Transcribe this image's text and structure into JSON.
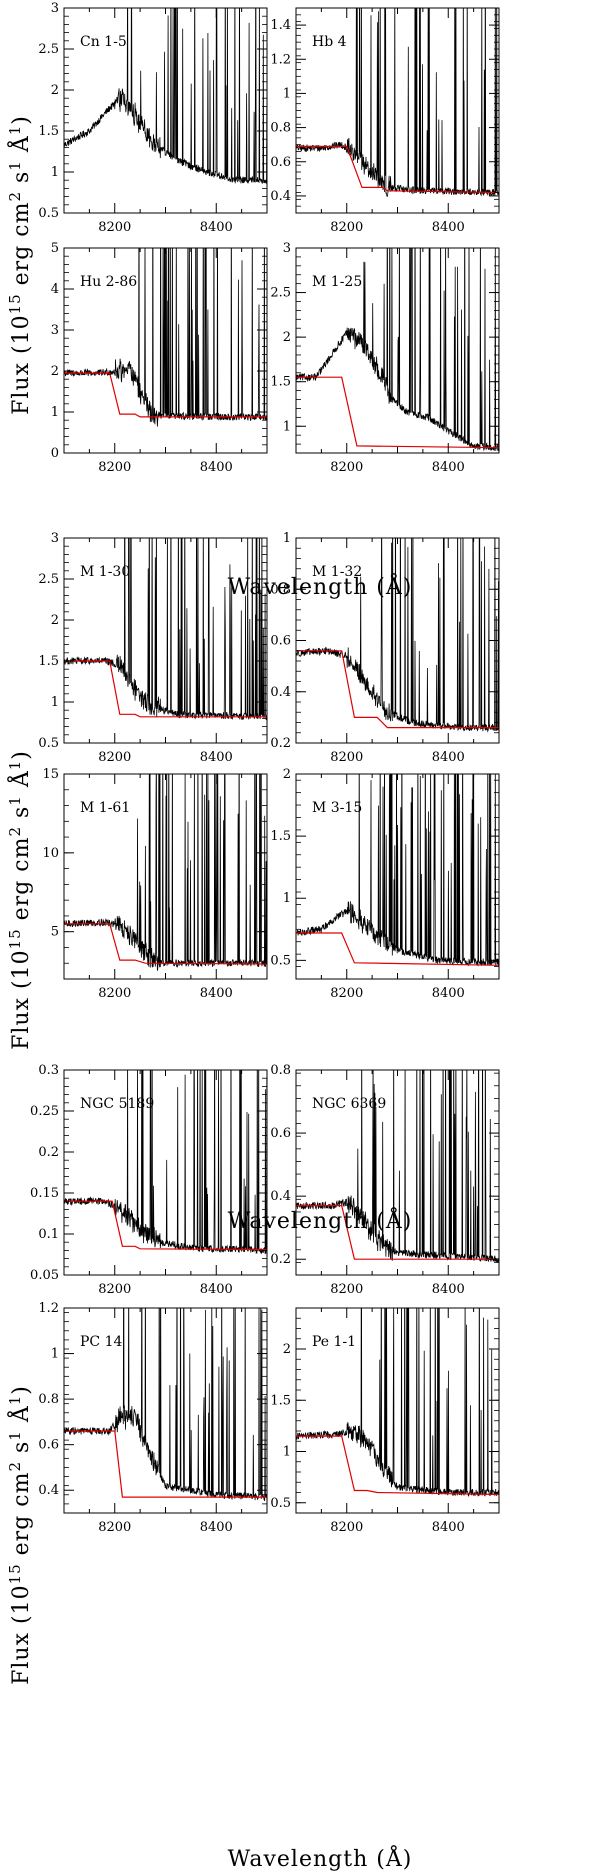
{
  "figure": {
    "xlabel": "Wavelength (Å)",
    "ylabel_main": "Flux (10",
    "ylabel_exp": "15",
    "ylabel_rest": " erg cm",
    "ylabel_exp2": "2",
    "ylabel_s": " s",
    "ylabel_exp3": "1",
    "ylabel_A": " Å",
    "ylabel_exp4": "1",
    "ylabel_close": ")"
  },
  "chart_data": [
    {
      "type": "line",
      "title": "Cn 1-5",
      "xlim": [
        8100,
        8500
      ],
      "ylim": [
        0.5,
        3
      ],
      "xticks": [
        8200,
        8400
      ],
      "yticks": [
        0.5,
        1,
        1.5,
        2,
        2.5,
        3
      ],
      "continuum": [
        [
          8100,
          1.33
        ],
        [
          8150,
          1.5
        ],
        [
          8190,
          1.78
        ],
        [
          8215,
          1.9
        ],
        [
          8240,
          1.7
        ],
        [
          8270,
          1.38
        ],
        [
          8320,
          1.15
        ],
        [
          8380,
          1.0
        ],
        [
          8440,
          0.9
        ],
        [
          8500,
          0.9
        ]
      ],
      "model": null
    },
    {
      "type": "line",
      "title": "Hb 4",
      "xlim": [
        8100,
        8500
      ],
      "ylim": [
        0.3,
        1.5
      ],
      "xticks": [
        8200,
        8400
      ],
      "yticks": [
        0.4,
        0.6,
        0.8,
        1,
        1.2,
        1.4
      ],
      "continuum": [
        [
          8100,
          0.68
        ],
        [
          8150,
          0.68
        ],
        [
          8190,
          0.7
        ],
        [
          8210,
          0.66
        ],
        [
          8240,
          0.56
        ],
        [
          8280,
          0.45
        ],
        [
          8350,
          0.43
        ],
        [
          8500,
          0.42
        ]
      ],
      "model": [
        [
          8100,
          0.69
        ],
        [
          8200,
          0.69
        ],
        [
          8230,
          0.45
        ],
        [
          8270,
          0.45
        ],
        [
          8280,
          0.43
        ],
        [
          8500,
          0.42
        ]
      ]
    },
    {
      "type": "line",
      "title": "Hu 2-86",
      "xlim": [
        8100,
        8500
      ],
      "ylim": [
        0,
        5
      ],
      "xticks": [
        8200,
        8400
      ],
      "yticks": [
        0,
        1,
        2,
        3,
        4,
        5
      ],
      "continuum": [
        [
          8100,
          1.95
        ],
        [
          8170,
          1.95
        ],
        [
          8200,
          2.0
        ],
        [
          8230,
          2.05
        ],
        [
          8255,
          1.3
        ],
        [
          8275,
          0.9
        ],
        [
          8500,
          0.88
        ]
      ],
      "model": [
        [
          8100,
          1.95
        ],
        [
          8190,
          1.95
        ],
        [
          8210,
          0.95
        ],
        [
          8240,
          0.95
        ],
        [
          8250,
          0.88
        ],
        [
          8500,
          0.88
        ]
      ]
    },
    {
      "type": "line",
      "title": "M 1-25",
      "xlim": [
        8100,
        8500
      ],
      "ylim": [
        0.7,
        3
      ],
      "xticks": [
        8200,
        8400
      ],
      "yticks": [
        1,
        1.5,
        2,
        2.5,
        3
      ],
      "continuum": [
        [
          8100,
          1.55
        ],
        [
          8140,
          1.55
        ],
        [
          8170,
          1.8
        ],
        [
          8200,
          2.05
        ],
        [
          8230,
          1.95
        ],
        [
          8260,
          1.65
        ],
        [
          8290,
          1.3
        ],
        [
          8320,
          1.15
        ],
        [
          8360,
          1.1
        ],
        [
          8400,
          0.95
        ],
        [
          8450,
          0.78
        ],
        [
          8500,
          0.76
        ]
      ],
      "model": [
        [
          8100,
          1.55
        ],
        [
          8190,
          1.55
        ],
        [
          8220,
          0.78
        ],
        [
          8500,
          0.76
        ]
      ]
    },
    {
      "type": "line",
      "title": "M 1-30",
      "xlim": [
        8100,
        8500
      ],
      "ylim": [
        0.5,
        3
      ],
      "xticks": [
        8200,
        8400
      ],
      "yticks": [
        0.5,
        1,
        1.5,
        2,
        2.5,
        3
      ],
      "continuum": [
        [
          8100,
          1.5
        ],
        [
          8180,
          1.5
        ],
        [
          8210,
          1.45
        ],
        [
          8240,
          1.15
        ],
        [
          8270,
          0.95
        ],
        [
          8320,
          0.85
        ],
        [
          8500,
          0.82
        ]
      ],
      "model": [
        [
          8100,
          1.5
        ],
        [
          8190,
          1.5
        ],
        [
          8210,
          0.85
        ],
        [
          8240,
          0.85
        ],
        [
          8250,
          0.82
        ],
        [
          8500,
          0.82
        ]
      ]
    },
    {
      "type": "line",
      "title": "M 1-32",
      "xlim": [
        8100,
        8500
      ],
      "ylim": [
        0.2,
        1
      ],
      "xticks": [
        8200,
        8400
      ],
      "yticks": [
        0.2,
        0.4,
        0.6,
        0.8,
        1
      ],
      "continuum": [
        [
          8100,
          0.55
        ],
        [
          8160,
          0.56
        ],
        [
          8200,
          0.54
        ],
        [
          8240,
          0.42
        ],
        [
          8280,
          0.32
        ],
        [
          8330,
          0.28
        ],
        [
          8420,
          0.26
        ],
        [
          8500,
          0.26
        ]
      ],
      "model": [
        [
          8100,
          0.56
        ],
        [
          8190,
          0.56
        ],
        [
          8215,
          0.3
        ],
        [
          8260,
          0.3
        ],
        [
          8280,
          0.26
        ],
        [
          8500,
          0.26
        ]
      ]
    },
    {
      "type": "line",
      "title": "M 1-61",
      "xlim": [
        8100,
        8500
      ],
      "ylim": [
        2,
        15
      ],
      "xticks": [
        8200,
        8400
      ],
      "yticks": [
        5,
        10,
        15
      ],
      "continuum": [
        [
          8100,
          5.5
        ],
        [
          8180,
          5.6
        ],
        [
          8210,
          5.4
        ],
        [
          8240,
          4.5
        ],
        [
          8270,
          3.3
        ],
        [
          8300,
          3.0
        ],
        [
          8500,
          3.0
        ]
      ],
      "model": [
        [
          8100,
          5.5
        ],
        [
          8190,
          5.5
        ],
        [
          8210,
          3.2
        ],
        [
          8240,
          3.2
        ],
        [
          8260,
          3.0
        ],
        [
          8500,
          2.95
        ]
      ]
    },
    {
      "type": "line",
      "title": "M 3-15",
      "xlim": [
        8100,
        8500
      ],
      "ylim": [
        0.35,
        2
      ],
      "xticks": [
        8200,
        8400
      ],
      "yticks": [
        0.5,
        1,
        1.5,
        2
      ],
      "continuum": [
        [
          8100,
          0.72
        ],
        [
          8150,
          0.75
        ],
        [
          8180,
          0.85
        ],
        [
          8205,
          0.9
        ],
        [
          8230,
          0.82
        ],
        [
          8260,
          0.7
        ],
        [
          8300,
          0.58
        ],
        [
          8380,
          0.5
        ],
        [
          8500,
          0.48
        ]
      ],
      "model": [
        [
          8100,
          0.72
        ],
        [
          8190,
          0.72
        ],
        [
          8215,
          0.48
        ],
        [
          8500,
          0.46
        ]
      ]
    },
    {
      "type": "line",
      "title": "NGC 5189",
      "xlim": [
        8100,
        8500
      ],
      "ylim": [
        0.05,
        0.3
      ],
      "xticks": [
        8200,
        8400
      ],
      "yticks": [
        0.05,
        0.1,
        0.15,
        0.2,
        0.25,
        0.3
      ],
      "continuum": [
        [
          8100,
          0.14
        ],
        [
          8180,
          0.14
        ],
        [
          8210,
          0.13
        ],
        [
          8250,
          0.105
        ],
        [
          8290,
          0.09
        ],
        [
          8350,
          0.083
        ],
        [
          8500,
          0.08
        ]
      ],
      "model": [
        [
          8100,
          0.14
        ],
        [
          8195,
          0.14
        ],
        [
          8215,
          0.085
        ],
        [
          8240,
          0.085
        ],
        [
          8250,
          0.082
        ],
        [
          8500,
          0.081
        ]
      ]
    },
    {
      "type": "line",
      "title": "NGC 6369",
      "xlim": [
        8100,
        8500
      ],
      "ylim": [
        0.15,
        0.8
      ],
      "xticks": [
        8200,
        8400
      ],
      "yticks": [
        0.2,
        0.4,
        0.6,
        0.8
      ],
      "continuum": [
        [
          8100,
          0.37
        ],
        [
          8170,
          0.37
        ],
        [
          8200,
          0.38
        ],
        [
          8230,
          0.33
        ],
        [
          8260,
          0.26
        ],
        [
          8300,
          0.22
        ],
        [
          8400,
          0.21
        ],
        [
          8500,
          0.2
        ]
      ],
      "model": [
        [
          8100,
          0.37
        ],
        [
          8190,
          0.37
        ],
        [
          8215,
          0.2
        ],
        [
          8500,
          0.2
        ]
      ]
    },
    {
      "type": "line",
      "title": "PC 14",
      "xlim": [
        8100,
        8500
      ],
      "ylim": [
        0.3,
        1.2
      ],
      "xticks": [
        8200,
        8400
      ],
      "yticks": [
        0.4,
        0.6,
        0.8,
        1,
        1.2
      ],
      "continuum": [
        [
          8100,
          0.66
        ],
        [
          8190,
          0.66
        ],
        [
          8210,
          0.72
        ],
        [
          8240,
          0.72
        ],
        [
          8270,
          0.55
        ],
        [
          8300,
          0.42
        ],
        [
          8400,
          0.38
        ],
        [
          8500,
          0.37
        ]
      ],
      "model": [
        [
          8100,
          0.66
        ],
        [
          8200,
          0.66
        ],
        [
          8215,
          0.37
        ],
        [
          8500,
          0.37
        ]
      ]
    },
    {
      "type": "line",
      "title": "Pe 1-1",
      "xlim": [
        8100,
        8500
      ],
      "ylim": [
        0.4,
        2.4
      ],
      "xticks": [
        8200,
        8400
      ],
      "yticks": [
        0.5,
        1,
        1.5,
        2
      ],
      "continuum": [
        [
          8100,
          1.15
        ],
        [
          8180,
          1.17
        ],
        [
          8210,
          1.2
        ],
        [
          8240,
          1.1
        ],
        [
          8270,
          0.85
        ],
        [
          8300,
          0.65
        ],
        [
          8400,
          0.6
        ],
        [
          8500,
          0.6
        ]
      ],
      "model": [
        [
          8100,
          1.15
        ],
        [
          8190,
          1.15
        ],
        [
          8215,
          0.62
        ],
        [
          8240,
          0.62
        ],
        [
          8260,
          0.6
        ],
        [
          8500,
          0.58
        ]
      ]
    }
  ]
}
